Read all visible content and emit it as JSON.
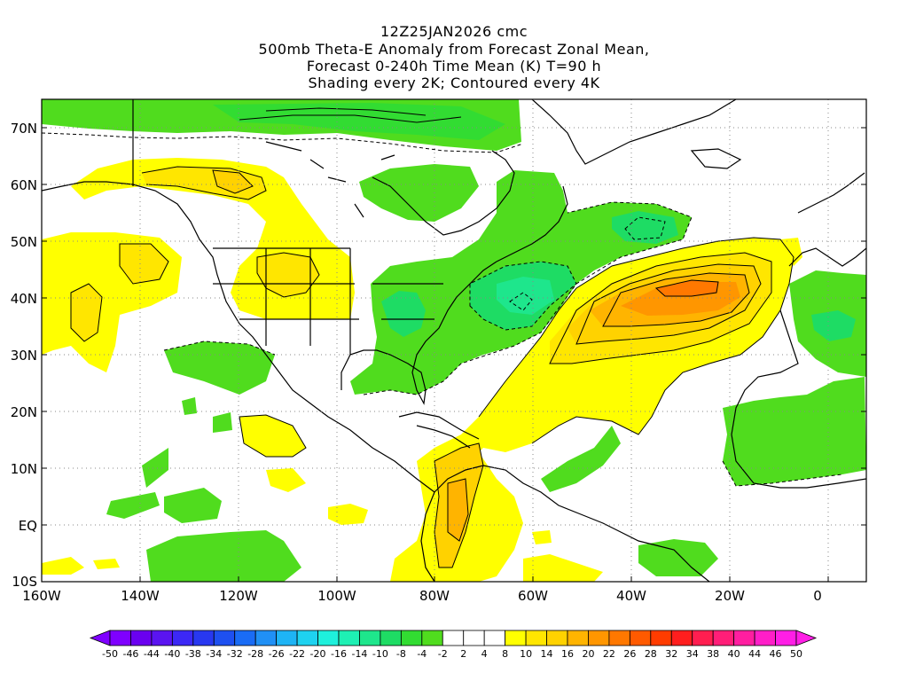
{
  "header": {
    "line1": "12Z25JAN2026 cmc",
    "line2": "500mb Theta-E Anomaly from Forecast Zonal Mean,",
    "line3": "Forecast 0-240h Time Mean (K) T=90 h",
    "line4": "Shading every 2K; Contoured every 4K"
  },
  "axes": {
    "lat_labels": [
      "70N",
      "60N",
      "50N",
      "40N",
      "30N",
      "20N",
      "10N",
      "EQ",
      "10S"
    ],
    "lon_labels": [
      "160W",
      "140W",
      "120W",
      "100W",
      "80W",
      "60W",
      "40W",
      "20W",
      "0"
    ]
  },
  "colorbar": {
    "labels": [
      "-50",
      "-46",
      "-44",
      "-40",
      "-38",
      "-34",
      "-32",
      "-28",
      "-26",
      "-22",
      "-20",
      "-16",
      "-14",
      "-10",
      "-8",
      "-4",
      "-2",
      "2",
      "4",
      "8",
      "10",
      "14",
      "16",
      "20",
      "22",
      "26",
      "28",
      "32",
      "34",
      "38",
      "40",
      "44",
      "46",
      "50"
    ],
    "colors": [
      "#7f00ff",
      "#6a00f0",
      "#5a14f0",
      "#3c28f5",
      "#2838f0",
      "#1e50f0",
      "#1a6cf5",
      "#2090f5",
      "#1eb4f5",
      "#1ed2f0",
      "#1ef0dc",
      "#1ef0b4",
      "#1ee68c",
      "#1edc64",
      "#32dc32",
      "#50dc1e",
      "#ffffff",
      "#ffffff",
      "#ffffff",
      "#ffff00",
      "#ffe600",
      "#ffd200",
      "#ffb400",
      "#ff9600",
      "#ff7800",
      "#ff5a00",
      "#ff3c00",
      "#ff1e1e",
      "#ff1e50",
      "#ff1e78",
      "#ff1ea0",
      "#ff1ec8",
      "#ff1ee6"
    ]
  }
}
